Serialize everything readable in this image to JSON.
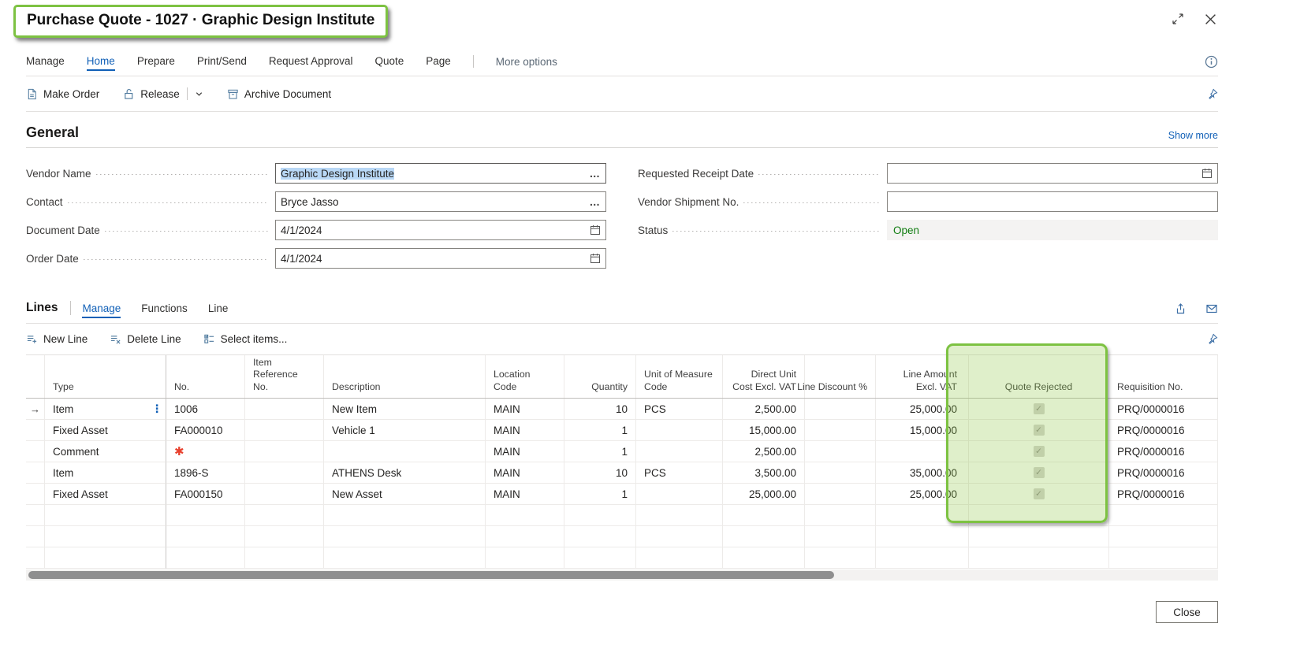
{
  "window": {
    "title": "Purchase Quote - 1027 · Graphic Design Institute"
  },
  "ribbon": {
    "tabs": [
      "Manage",
      "Home",
      "Prepare",
      "Print/Send",
      "Request Approval",
      "Quote",
      "Page"
    ],
    "active_tab": "Home",
    "more_options_label": "More options",
    "actions": {
      "make_order": "Make Order",
      "release": "Release",
      "archive_document": "Archive Document"
    }
  },
  "general": {
    "heading": "General",
    "show_more_label": "Show more",
    "fields_left": [
      {
        "label": "Vendor Name",
        "value": "Graphic Design Institute"
      },
      {
        "label": "Contact",
        "value": "Bryce Jasso"
      },
      {
        "label": "Document Date",
        "value": "4/1/2024"
      },
      {
        "label": "Order Date",
        "value": "4/1/2024"
      }
    ],
    "fields_right": [
      {
        "label": "Requested Receipt Date",
        "value": ""
      },
      {
        "label": "Vendor Shipment No.",
        "value": ""
      },
      {
        "label": "Status",
        "value": "Open"
      }
    ]
  },
  "lines": {
    "heading": "Lines",
    "tabs": [
      "Manage",
      "Functions",
      "Line"
    ],
    "active_tab": "Manage",
    "actions": {
      "new_line": "New Line",
      "delete_line": "Delete Line",
      "select_items": "Select items..."
    },
    "table": {
      "columns": [
        {
          "key": "type",
          "label": "Type",
          "align": "left"
        },
        {
          "key": "no",
          "label": "No.",
          "align": "left"
        },
        {
          "key": "item_ref",
          "label": "Item Reference No.",
          "align": "left"
        },
        {
          "key": "description",
          "label": "Description",
          "align": "left"
        },
        {
          "key": "location",
          "label": "Location Code",
          "align": "left"
        },
        {
          "key": "quantity",
          "label": "Quantity",
          "align": "right"
        },
        {
          "key": "uom",
          "label": "Unit of Measure Code",
          "align": "left"
        },
        {
          "key": "unit_cost",
          "label": "Direct Unit Cost Excl. VAT",
          "align": "right"
        },
        {
          "key": "line_discount",
          "label": "Line Discount %",
          "align": "right"
        },
        {
          "key": "line_amount",
          "label": "Line Amount Excl. VAT",
          "align": "right"
        },
        {
          "key": "quote_rejected",
          "label": "Quote Rejected",
          "align": "center"
        },
        {
          "key": "requisition",
          "label": "Requisition No.",
          "align": "left"
        }
      ],
      "rows": [
        {
          "selected": true,
          "type": "Item",
          "no": "1006",
          "item_ref": "",
          "description": "New Item",
          "location": "MAIN",
          "quantity": "10",
          "uom": "PCS",
          "unit_cost": "2,500.00",
          "line_discount": "",
          "line_amount": "25,000.00",
          "quote_rejected": true,
          "requisition": "PRQ/0000016"
        },
        {
          "type": "Fixed Asset",
          "no": "FA000010",
          "item_ref": "",
          "description": "Vehicle 1",
          "location": "MAIN",
          "quantity": "1",
          "uom": "",
          "unit_cost": "15,000.00",
          "line_discount": "",
          "line_amount": "15,000.00",
          "quote_rejected": true,
          "requisition": "PRQ/0000016"
        },
        {
          "type": "Comment",
          "no": "✱",
          "item_ref": "",
          "description": "",
          "location": "MAIN",
          "quantity": "1",
          "uom": "",
          "unit_cost": "2,500.00",
          "line_discount": "",
          "line_amount": "",
          "quote_rejected": true,
          "requisition": "PRQ/0000016"
        },
        {
          "type": "Item",
          "no": "1896-S",
          "item_ref": "",
          "description": "ATHENS Desk",
          "location": "MAIN",
          "quantity": "10",
          "uom": "PCS",
          "unit_cost": "3,500.00",
          "line_discount": "",
          "line_amount": "35,000.00",
          "quote_rejected": true,
          "requisition": "PRQ/0000016"
        },
        {
          "type": "Fixed Asset",
          "no": "FA000150",
          "item_ref": "",
          "description": "New Asset",
          "location": "MAIN",
          "quantity": "1",
          "uom": "",
          "unit_cost": "25,000.00",
          "line_discount": "",
          "line_amount": "25,000.00",
          "quote_rejected": true,
          "requisition": "PRQ/0000016"
        },
        {
          "empty": true
        },
        {
          "empty": true
        },
        {
          "empty": true
        }
      ]
    }
  },
  "annotations": {
    "highlight_color": "#7dc242",
    "highlighted_title": true,
    "highlighted_column": "Quote Rejected"
  },
  "status_colors": {
    "open_green": "#107c10"
  },
  "footer": {
    "close_label": "Close"
  },
  "ui": {
    "assist_edit": "…",
    "row_marker": "→",
    "row_menu": "⋮",
    "checkbox_check": "✓"
  }
}
